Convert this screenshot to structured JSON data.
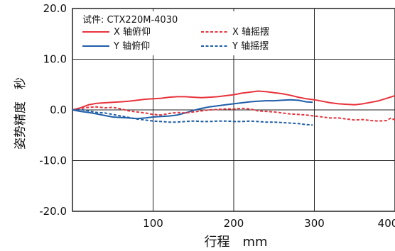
{
  "chart_data": {
    "type": "line",
    "subtitle": "试件: CTX220M-4030",
    "xlabel": "行程　mm",
    "ylabel": "姿势精度　秒",
    "xlim": [
      0,
      400
    ],
    "ylim": [
      -20,
      20
    ],
    "x_ticks": [
      "100",
      "200",
      "300",
      "400"
    ],
    "y_ticks": [
      "20.0",
      "10.0",
      "0.0",
      "-10.0",
      "-20.0"
    ],
    "grid": true,
    "legend_placement": "top-left",
    "series": [
      {
        "name": "X 轴俯仰",
        "color": "#e8333c",
        "dash": "solid",
        "points": [
          [
            0,
            0
          ],
          [
            10,
            0.4
          ],
          [
            20,
            1.0
          ],
          [
            30,
            1.3
          ],
          [
            40,
            1.4
          ],
          [
            50,
            1.5
          ],
          [
            60,
            1.6
          ],
          [
            70,
            1.7
          ],
          [
            80,
            1.9
          ],
          [
            90,
            2.1
          ],
          [
            100,
            2.2
          ],
          [
            110,
            2.3
          ],
          [
            120,
            2.5
          ],
          [
            130,
            2.6
          ],
          [
            140,
            2.6
          ],
          [
            150,
            2.5
          ],
          [
            160,
            2.4
          ],
          [
            170,
            2.5
          ],
          [
            180,
            2.6
          ],
          [
            190,
            2.8
          ],
          [
            200,
            3.0
          ],
          [
            210,
            3.3
          ],
          [
            220,
            3.5
          ],
          [
            230,
            3.7
          ],
          [
            240,
            3.6
          ],
          [
            250,
            3.4
          ],
          [
            260,
            3.2
          ],
          [
            270,
            2.9
          ],
          [
            280,
            2.5
          ],
          [
            290,
            2.2
          ],
          [
            300,
            2.0
          ],
          [
            310,
            1.7
          ],
          [
            320,
            1.4
          ],
          [
            330,
            1.2
          ],
          [
            340,
            1.1
          ],
          [
            350,
            1.0
          ],
          [
            360,
            1.2
          ],
          [
            370,
            1.5
          ],
          [
            380,
            1.8
          ],
          [
            390,
            2.3
          ],
          [
            400,
            2.8
          ]
        ]
      },
      {
        "name": "Y 轴俯仰",
        "color": "#1f5ea8",
        "dash": "solid",
        "points": [
          [
            0,
            0
          ],
          [
            10,
            -0.3
          ],
          [
            20,
            -0.5
          ],
          [
            30,
            -0.8
          ],
          [
            40,
            -1.1
          ],
          [
            50,
            -1.4
          ],
          [
            60,
            -1.5
          ],
          [
            70,
            -1.6
          ],
          [
            80,
            -1.7
          ],
          [
            90,
            -1.6
          ],
          [
            100,
            -1.4
          ],
          [
            110,
            -1.3
          ],
          [
            120,
            -1.2
          ],
          [
            130,
            -1.0
          ],
          [
            140,
            -0.6
          ],
          [
            150,
            -0.1
          ],
          [
            160,
            0.3
          ],
          [
            170,
            0.6
          ],
          [
            180,
            0.8
          ],
          [
            190,
            1.0
          ],
          [
            200,
            1.2
          ],
          [
            210,
            1.4
          ],
          [
            220,
            1.6
          ],
          [
            230,
            1.7
          ],
          [
            240,
            1.8
          ],
          [
            250,
            1.8
          ],
          [
            260,
            1.9
          ],
          [
            270,
            2.0
          ],
          [
            280,
            1.9
          ],
          [
            290,
            1.6
          ],
          [
            298,
            1.5
          ]
        ]
      },
      {
        "name": "X 轴摇摆",
        "color": "#e8333c",
        "dash": "dashed",
        "points": [
          [
            0,
            0
          ],
          [
            10,
            0.3
          ],
          [
            20,
            0.5
          ],
          [
            30,
            0.6
          ],
          [
            40,
            0.4
          ],
          [
            50,
            0.5
          ],
          [
            60,
            0.2
          ],
          [
            70,
            -0.2
          ],
          [
            80,
            -0.4
          ],
          [
            90,
            -0.6
          ],
          [
            100,
            -0.9
          ],
          [
            110,
            -1.0
          ],
          [
            120,
            -0.7
          ],
          [
            130,
            -0.5
          ],
          [
            140,
            -0.6
          ],
          [
            150,
            -0.4
          ],
          [
            160,
            -0.2
          ],
          [
            170,
            0.0
          ],
          [
            180,
            0.1
          ],
          [
            190,
            0.2
          ],
          [
            200,
            0.2
          ],
          [
            210,
            0.3
          ],
          [
            220,
            0.2
          ],
          [
            230,
            -0.2
          ],
          [
            240,
            -0.3
          ],
          [
            250,
            -0.4
          ],
          [
            260,
            -0.6
          ],
          [
            270,
            -0.8
          ],
          [
            280,
            -0.9
          ],
          [
            290,
            -1.0
          ],
          [
            300,
            -1.2
          ],
          [
            310,
            -1.4
          ],
          [
            320,
            -1.6
          ],
          [
            330,
            -1.6
          ],
          [
            340,
            -1.8
          ],
          [
            350,
            -2.0
          ],
          [
            360,
            -1.9
          ],
          [
            370,
            -2.1
          ],
          [
            380,
            -2.2
          ],
          [
            390,
            -2.1
          ],
          [
            395,
            -1.6
          ],
          [
            400,
            -2.0
          ]
        ]
      },
      {
        "name": "Y 轴摇摆",
        "color": "#1f5ea8",
        "dash": "dashed",
        "points": [
          [
            0,
            0
          ],
          [
            10,
            0.1
          ],
          [
            20,
            -0.2
          ],
          [
            30,
            -0.5
          ],
          [
            40,
            -0.6
          ],
          [
            50,
            -0.9
          ],
          [
            60,
            -1.2
          ],
          [
            70,
            -1.5
          ],
          [
            80,
            -1.8
          ],
          [
            90,
            -2.0
          ],
          [
            100,
            -2.2
          ],
          [
            110,
            -2.3
          ],
          [
            120,
            -2.4
          ],
          [
            130,
            -2.4
          ],
          [
            140,
            -2.3
          ],
          [
            150,
            -2.2
          ],
          [
            160,
            -2.3
          ],
          [
            170,
            -2.3
          ],
          [
            180,
            -2.2
          ],
          [
            190,
            -2.2
          ],
          [
            200,
            -2.3
          ],
          [
            210,
            -2.3
          ],
          [
            220,
            -2.2
          ],
          [
            230,
            -2.3
          ],
          [
            240,
            -2.4
          ],
          [
            250,
            -2.4
          ],
          [
            260,
            -2.5
          ],
          [
            270,
            -2.6
          ],
          [
            280,
            -2.7
          ],
          [
            290,
            -2.9
          ],
          [
            298,
            -3.0
          ]
        ]
      }
    ]
  }
}
